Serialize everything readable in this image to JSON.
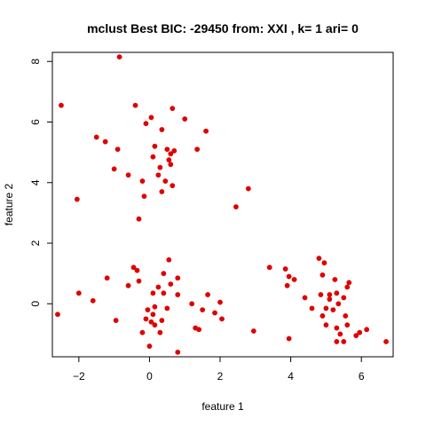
{
  "chart_data": {
    "type": "scatter",
    "title": "mclust Best BIC: -29450 from: XXI , k= 1 ari= 0",
    "xlabel": "feature 1",
    "ylabel": "feature 2",
    "xlim": [
      -2.75,
      6.9
    ],
    "ylim": [
      -1.75,
      8.3
    ],
    "xticks": [
      -2,
      0,
      2,
      4,
      6
    ],
    "yticks": [
      0,
      2,
      4,
      6,
      8
    ],
    "grid": false,
    "point_color": "#e00000",
    "points": [
      [
        -0.85,
        8.15
      ],
      [
        -2.5,
        6.55
      ],
      [
        -0.4,
        6.55
      ],
      [
        0.05,
        6.15
      ],
      [
        0.65,
        6.45
      ],
      [
        -0.1,
        5.95
      ],
      [
        0.35,
        5.75
      ],
      [
        1.0,
        6.1
      ],
      [
        1.6,
        5.7
      ],
      [
        -1.5,
        5.5
      ],
      [
        -1.25,
        5.35
      ],
      [
        -0.9,
        5.1
      ],
      [
        0.15,
        5.2
      ],
      [
        0.5,
        5.1
      ],
      [
        0.6,
        4.95
      ],
      [
        0.7,
        5.05
      ],
      [
        1.35,
        5.1
      ],
      [
        0.1,
        4.85
      ],
      [
        0.55,
        4.75
      ],
      [
        0.6,
        4.6
      ],
      [
        -1.0,
        4.45
      ],
      [
        0.3,
        4.5
      ],
      [
        -0.6,
        4.25
      ],
      [
        0.25,
        4.25
      ],
      [
        -0.2,
        4.05
      ],
      [
        0.45,
        4.05
      ],
      [
        0.65,
        3.9
      ],
      [
        0.35,
        3.7
      ],
      [
        -0.15,
        3.55
      ],
      [
        -2.05,
        3.45
      ],
      [
        2.8,
        3.8
      ],
      [
        2.45,
        3.2
      ],
      [
        -0.3,
        2.8
      ],
      [
        -0.45,
        1.2
      ],
      [
        -0.35,
        1.1
      ],
      [
        0.55,
        1.45
      ],
      [
        0.4,
        1.0
      ],
      [
        -1.2,
        0.85
      ],
      [
        0.8,
        0.85
      ],
      [
        -0.3,
        0.75
      ],
      [
        -0.6,
        0.6
      ],
      [
        0.25,
        0.55
      ],
      [
        0.6,
        0.65
      ],
      [
        0.1,
        0.35
      ],
      [
        0.4,
        0.35
      ],
      [
        -2.0,
        0.35
      ],
      [
        0.8,
        0.3
      ],
      [
        1.65,
        0.3
      ],
      [
        1.2,
        0.0
      ],
      [
        2.0,
        0.05
      ],
      [
        -1.6,
        0.1
      ],
      [
        0.15,
        -0.1
      ],
      [
        0.5,
        -0.15
      ],
      [
        -0.05,
        -0.2
      ],
      [
        1.5,
        -0.2
      ],
      [
        1.85,
        -0.3
      ],
      [
        0.1,
        -0.35
      ],
      [
        -2.6,
        -0.35
      ],
      [
        -0.95,
        -0.55
      ],
      [
        -0.1,
        -0.5
      ],
      [
        0.05,
        -0.6
      ],
      [
        0.35,
        -0.55
      ],
      [
        0.15,
        -0.7
      ],
      [
        2.05,
        -0.5
      ],
      [
        1.3,
        -0.8
      ],
      [
        1.4,
        -0.85
      ],
      [
        -0.2,
        -0.95
      ],
      [
        0.3,
        -0.95
      ],
      [
        2.95,
        -0.9
      ],
      [
        0.0,
        -1.4
      ],
      [
        0.8,
        -1.6
      ],
      [
        3.4,
        1.2
      ],
      [
        3.85,
        1.15
      ],
      [
        4.8,
        1.5
      ],
      [
        4.95,
        1.35
      ],
      [
        3.95,
        0.9
      ],
      [
        4.1,
        0.8
      ],
      [
        4.9,
        0.95
      ],
      [
        3.9,
        0.6
      ],
      [
        5.25,
        0.8
      ],
      [
        5.65,
        0.7
      ],
      [
        5.6,
        0.55
      ],
      [
        4.4,
        0.2
      ],
      [
        4.85,
        0.3
      ],
      [
        5.1,
        0.3
      ],
      [
        5.3,
        0.35
      ],
      [
        5.5,
        0.2
      ],
      [
        5.1,
        0.15
      ],
      [
        5.35,
        0.0
      ],
      [
        4.6,
        -0.15
      ],
      [
        5.0,
        -0.15
      ],
      [
        5.2,
        -0.2
      ],
      [
        4.9,
        -0.4
      ],
      [
        5.55,
        -0.4
      ],
      [
        5.0,
        -0.7
      ],
      [
        5.6,
        -0.7
      ],
      [
        5.3,
        -0.8
      ],
      [
        6.15,
        -0.85
      ],
      [
        5.95,
        -0.95
      ],
      [
        5.4,
        -1.0
      ],
      [
        5.85,
        -1.05
      ],
      [
        3.95,
        -1.15
      ],
      [
        5.3,
        -1.25
      ],
      [
        5.5,
        -1.25
      ],
      [
        6.7,
        -1.25
      ]
    ]
  }
}
